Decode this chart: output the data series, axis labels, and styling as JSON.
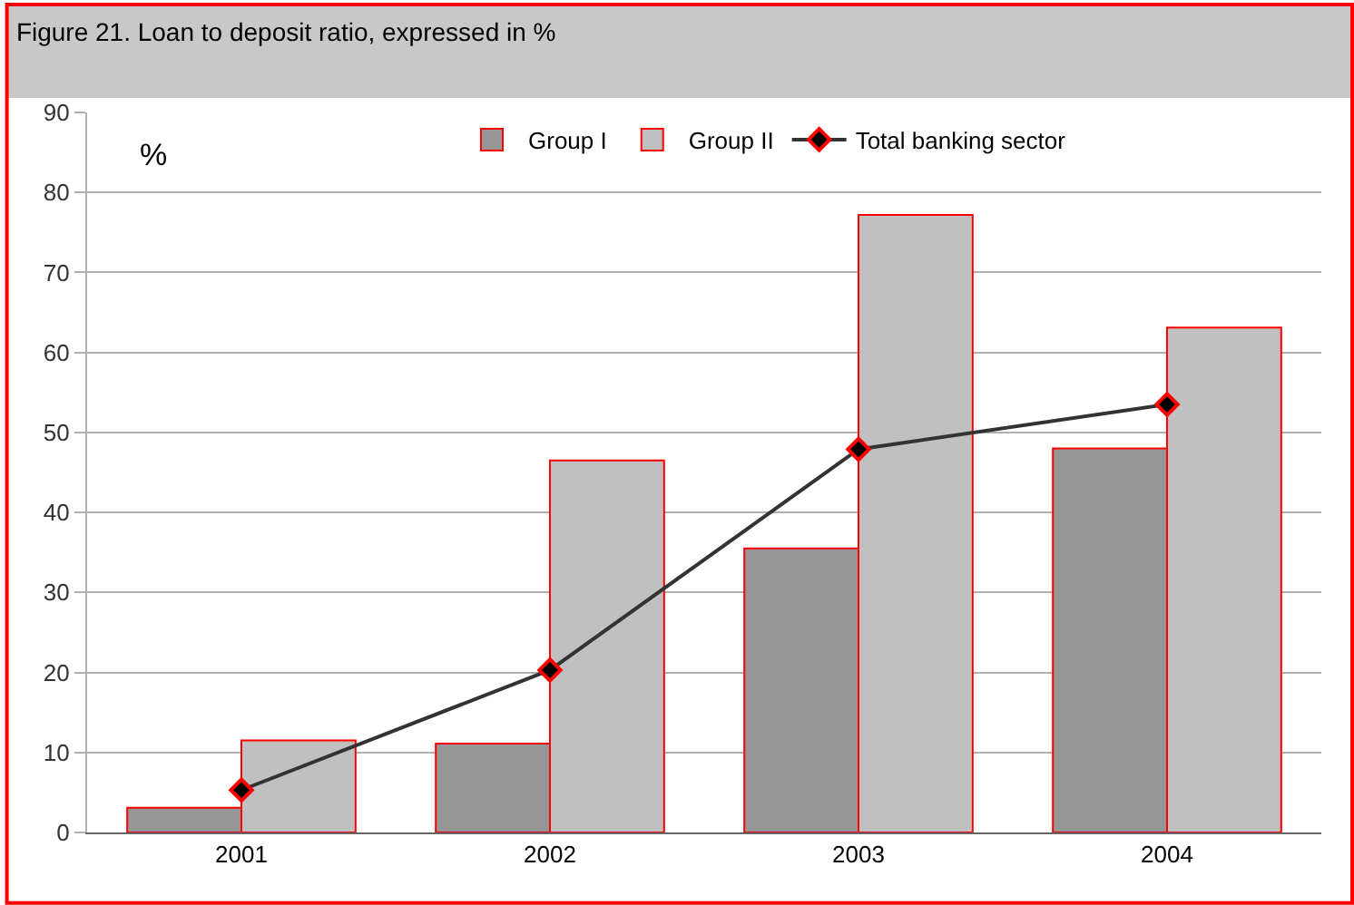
{
  "chart_data": {
    "type": "bar",
    "title": "Figure 21. Loan to deposit ratio, expressed in %",
    "ylabel": "%",
    "categories": [
      "2001",
      "2002",
      "2003",
      "2004"
    ],
    "series": [
      {
        "name": "Group I",
        "color": "#969696",
        "values": [
          3.1,
          11.1,
          35.5,
          48.0
        ]
      },
      {
        "name": "Group II",
        "color": "#c0c0c0",
        "values": [
          11.5,
          46.5,
          77.2,
          63.1
        ]
      },
      {
        "name": "Total banking sector",
        "type": "line",
        "color": "#333333",
        "marker": "diamond",
        "values": [
          5.3,
          20.3,
          47.9,
          53.5
        ]
      }
    ],
    "ylim": [
      0,
      90
    ],
    "yticks": [
      0,
      10,
      20,
      30,
      40,
      50,
      60,
      70,
      80,
      90
    ],
    "grid": "y",
    "legend": "top"
  }
}
